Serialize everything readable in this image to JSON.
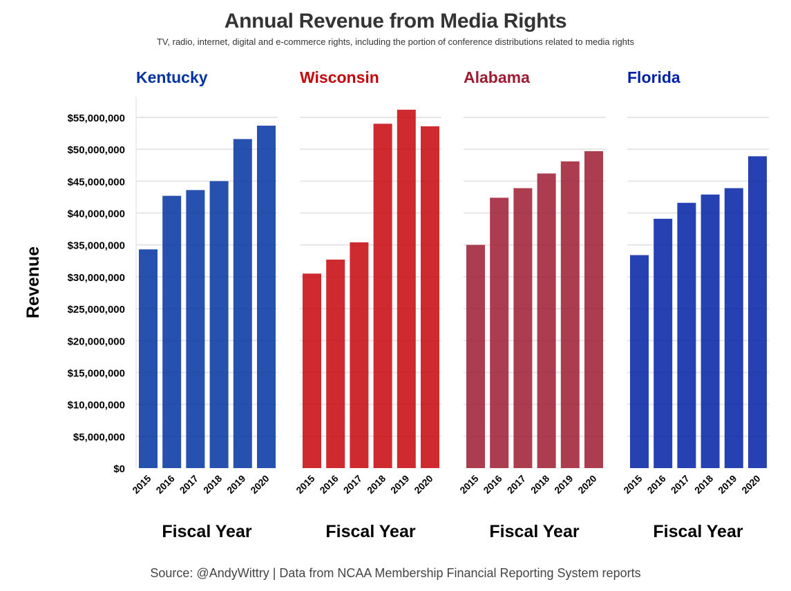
{
  "chart_data": {
    "type": "bar",
    "title": "Annual Revenue from Media Rights",
    "subtitle": "TV, radio, internet, digital and e-commerce rights, including the portion of conference distributions related to media rights",
    "caption": "Source: @AndyWittry | Data from NCAA Membership Financial Reporting System reports",
    "ylabel": "Revenue",
    "xlabel": "Fiscal Year",
    "ylim": [
      0,
      58000000
    ],
    "y_ticks": [
      0,
      5000000,
      10000000,
      15000000,
      20000000,
      25000000,
      30000000,
      35000000,
      40000000,
      45000000,
      50000000,
      55000000
    ],
    "y_tick_labels": [
      "$0",
      "$5,000,000",
      "$10,000,000",
      "$15,000,000",
      "$20,000,000",
      "$25,000,000",
      "$30,000,000",
      "$35,000,000",
      "$40,000,000",
      "$45,000,000",
      "$50,000,000",
      "$55,000,000"
    ],
    "grid": true,
    "legend": "none",
    "categories": [
      "2015",
      "2016",
      "2017",
      "2018",
      "2019",
      "2020"
    ],
    "panels": [
      {
        "name": "Kentucky",
        "color": "#0033a0",
        "values": [
          34300000,
          42700000,
          43600000,
          45000000,
          51600000,
          53700000
        ]
      },
      {
        "name": "Wisconsin",
        "color": "#c5050c",
        "values": [
          30500000,
          32700000,
          35400000,
          54000000,
          56200000,
          53600000
        ]
      },
      {
        "name": "Alabama",
        "color": "#9e1b32",
        "values": [
          35000000,
          42400000,
          43900000,
          46200000,
          48100000,
          49700000
        ]
      },
      {
        "name": "Florida",
        "color": "#0021a5",
        "values": [
          33400000,
          39100000,
          41600000,
          42900000,
          43900000,
          48900000
        ]
      }
    ]
  }
}
